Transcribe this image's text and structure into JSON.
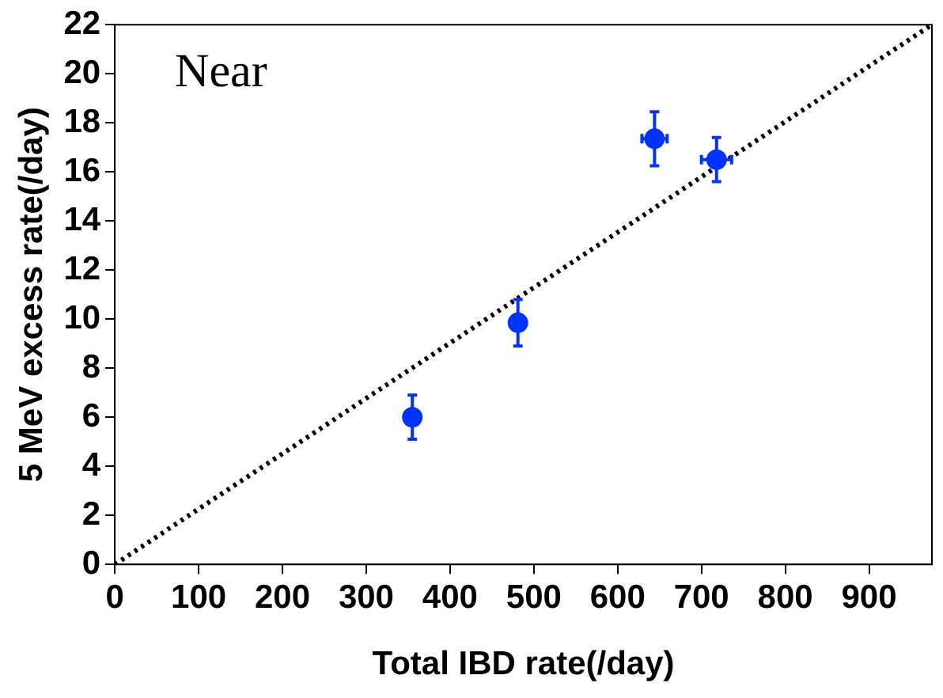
{
  "chart_data": {
    "type": "scatter",
    "xlabel": "Total IBD rate(/day)",
    "ylabel": "5 MeV excess rate(/day)",
    "annotations": [
      "Near"
    ],
    "xlim": [
      0,
      975
    ],
    "xticks": [
      0,
      100,
      200,
      300,
      400,
      500,
      600,
      700,
      800,
      900
    ],
    "ylim": [
      0,
      22
    ],
    "yticks": [
      0,
      2,
      4,
      6,
      8,
      10,
      12,
      14,
      16,
      18,
      20,
      22
    ],
    "grid": false,
    "legend": false,
    "marker": "circle",
    "series": [
      {
        "color": "#0033ff",
        "x": [
          355,
          481,
          644,
          718
        ],
        "values": [
          6.0,
          9.85,
          17.35,
          16.5
        ],
        "errors": [
          0.9,
          0.95,
          1.1,
          0.9
        ],
        "xerrors": [
          null,
          null,
          15,
          18
        ]
      },
      {
        "type": "line",
        "color": "#000000",
        "line_style": "dotted",
        "marker": "none",
        "x": [
          0,
          975
        ],
        "values": [
          0,
          22
        ]
      }
    ]
  }
}
